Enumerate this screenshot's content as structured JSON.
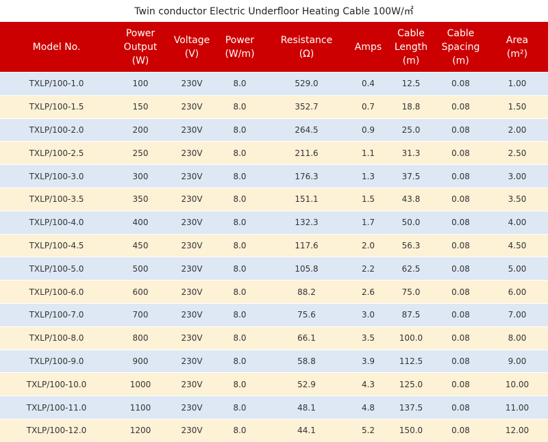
{
  "title": "Twin conductor Electric Underfloor Heating Cable 100W/㎡",
  "columns": [
    "Model No.",
    "Power\nOutput\n(W)",
    "Voltage\n(V)",
    "Power\n(W/m)",
    "Resistance\n(Ω)",
    "Amps",
    "Cable\nLength\n(m)",
    "Cable\nSpacing\n(m)",
    "Area\n(m²)"
  ],
  "rows": [
    [
      "TXLP/100-1.0",
      "100",
      "230V",
      "8.0",
      "529.0",
      "0.4",
      "12.5",
      "0.08",
      "1.00"
    ],
    [
      "TXLP/100-1.5",
      "150",
      "230V",
      "8.0",
      "352.7",
      "0.7",
      "18.8",
      "0.08",
      "1.50"
    ],
    [
      "TXLP/100-2.0",
      "200",
      "230V",
      "8.0",
      "264.5",
      "0.9",
      "25.0",
      "0.08",
      "2.00"
    ],
    [
      "TXLP/100-2.5",
      "250",
      "230V",
      "8.0",
      "211.6",
      "1.1",
      "31.3",
      "0.08",
      "2.50"
    ],
    [
      "TXLP/100-3.0",
      "300",
      "230V",
      "8.0",
      "176.3",
      "1.3",
      "37.5",
      "0.08",
      "3.00"
    ],
    [
      "TXLP/100-3.5",
      "350",
      "230V",
      "8.0",
      "151.1",
      "1.5",
      "43.8",
      "0.08",
      "3.50"
    ],
    [
      "TXLP/100-4.0",
      "400",
      "230V",
      "8.0",
      "132.3",
      "1.7",
      "50.0",
      "0.08",
      "4.00"
    ],
    [
      "TXLP/100-4.5",
      "450",
      "230V",
      "8.0",
      "117.6",
      "2.0",
      "56.3",
      "0.08",
      "4.50"
    ],
    [
      "TXLP/100-5.0",
      "500",
      "230V",
      "8.0",
      "105.8",
      "2.2",
      "62.5",
      "0.08",
      "5.00"
    ],
    [
      "TXLP/100-6.0",
      "600",
      "230V",
      "8.0",
      "88.2",
      "2.6",
      "75.0",
      "0.08",
      "6.00"
    ],
    [
      "TXLP/100-7.0",
      "700",
      "230V",
      "8.0",
      "75.6",
      "3.0",
      "87.5",
      "0.08",
      "7.00"
    ],
    [
      "TXLP/100-8.0",
      "800",
      "230V",
      "8.0",
      "66.1",
      "3.5",
      "100.0",
      "0.08",
      "8.00"
    ],
    [
      "TXLP/100-9.0",
      "900",
      "230V",
      "8.0",
      "58.8",
      "3.9",
      "112.5",
      "0.08",
      "9.00"
    ],
    [
      "TXLP/100-10.0",
      "1000",
      "230V",
      "8.0",
      "52.9",
      "4.3",
      "125.0",
      "0.08",
      "10.00"
    ],
    [
      "TXLP/100-11.0",
      "1100",
      "230V",
      "8.0",
      "48.1",
      "4.8",
      "137.5",
      "0.08",
      "11.00"
    ],
    [
      "TXLP/100-12.0",
      "1200",
      "230V",
      "8.0",
      "44.1",
      "5.2",
      "150.0",
      "0.08",
      "12.00"
    ]
  ],
  "colors": {
    "header_bg": "#cc0000",
    "header_text": "#ffffff",
    "row_odd": "#dde8f4",
    "row_even": "#fdf1d6"
  }
}
